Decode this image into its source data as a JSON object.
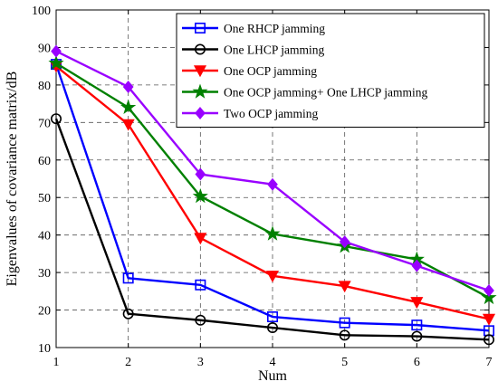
{
  "chart_data": {
    "type": "line",
    "title": "",
    "xlabel": "Num",
    "ylabel": "Eigenvalues of covariance matrix/dB",
    "x": [
      1,
      2,
      3,
      4,
      5,
      6,
      7
    ],
    "xlim": [
      1,
      7
    ],
    "ylim": [
      10,
      100
    ],
    "xticks": [
      1,
      2,
      3,
      4,
      5,
      6,
      7
    ],
    "yticks": [
      10,
      20,
      30,
      40,
      50,
      60,
      70,
      80,
      90,
      100
    ],
    "grid": true,
    "legend_position": "top-right",
    "series": [
      {
        "name": "One RHCP jamming",
        "color": "#0000ff",
        "marker": "square",
        "values": [
          85.5,
          28.5,
          26.7,
          18.2,
          16.6,
          16.0,
          14.5
        ]
      },
      {
        "name": "One LHCP jamming",
        "color": "#000000",
        "marker": "circle",
        "values": [
          71.0,
          19.0,
          17.3,
          15.3,
          13.3,
          13.0,
          12.1
        ]
      },
      {
        "name": "One OCP jamming",
        "color": "#ff0000",
        "marker": "triangle-down",
        "values": [
          85.0,
          69.5,
          39.2,
          29.1,
          26.4,
          22.1,
          17.6
        ]
      },
      {
        "name": "One OCP jamming+ One LHCP jamming",
        "color": "#008000",
        "marker": "star",
        "values": [
          85.8,
          74.0,
          50.3,
          40.3,
          37.0,
          33.5,
          23.3
        ]
      },
      {
        "name": "Two OCP jamming",
        "color": "#9900ff",
        "marker": "diamond",
        "values": [
          89.0,
          79.5,
          56.2,
          53.5,
          38.2,
          31.8,
          25.2
        ]
      }
    ]
  }
}
